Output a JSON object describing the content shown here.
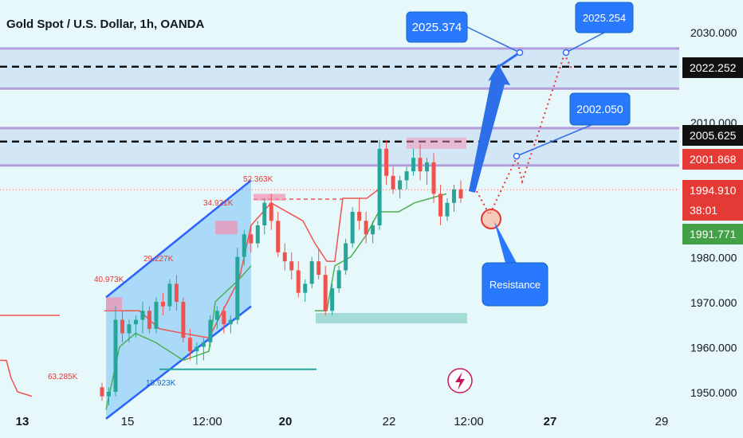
{
  "header": {
    "title": "Gold Spot / U.S. Dollar, 1h, OANDA"
  },
  "colors": {
    "background": "#e6f8fa",
    "up_candle": "#26a69a",
    "down_candle": "#ef5350",
    "zone_fill": "#cfe3f5",
    "zone_border": "#b39ddb",
    "channel": "#2962ff",
    "callout": "#2979ff",
    "price_line": "#ef5350",
    "green_tag": "#43a047"
  },
  "chart_data": {
    "type": "candlestick",
    "symbol": "Gold Spot / U.S. Dollar",
    "timeframe": "1h",
    "source": "OANDA",
    "ylim": [
      1946,
      2035
    ],
    "x_ticks": [
      "13",
      "15",
      "12:00",
      "20",
      "22",
      "12:00",
      "27",
      "29"
    ],
    "y_ticks": [
      "1950.000",
      "1960.000",
      "1970.000",
      "1980.000",
      "2010.000",
      "2030.000"
    ],
    "price_tags": [
      {
        "label": "2022.252",
        "value": 2022.252,
        "style": "dark"
      },
      {
        "label": "2005.625",
        "value": 2005.625,
        "style": "dark"
      },
      {
        "label": "2001.868",
        "value": 2001.868,
        "style": "red"
      },
      {
        "label": "1994.910",
        "value": 1994.91,
        "style": "red"
      },
      {
        "label": "38:01",
        "value": 1990.4,
        "style": "red"
      },
      {
        "label": "1991.771",
        "value": 1984.3,
        "style": "green"
      }
    ],
    "zones": [
      {
        "top": 2026.3,
        "bottom": 2017.4,
        "dashed_level": 2022.252
      },
      {
        "top": 2008.6,
        "bottom": 2000.3,
        "dashed_level": 2005.625
      }
    ],
    "volume_labels": [
      "52.363K",
      "34.921K",
      "29.227K",
      "40.973K",
      "63.285K",
      "18.923K"
    ],
    "annotations": {
      "callout_1": "2025.374",
      "callout_2": "2025.254",
      "callout_3": "2002.050",
      "resistance": "Resistance"
    },
    "candles": [
      [
        1951,
        1952,
        1948,
        1949
      ],
      [
        1949,
        1951,
        1947,
        1950
      ],
      [
        1950,
        1969,
        1949,
        1966
      ],
      [
        1966,
        1968,
        1961,
        1963
      ],
      [
        1963,
        1966,
        1961,
        1965
      ],
      [
        1965,
        1967,
        1962,
        1966
      ],
      [
        1966,
        1970,
        1963,
        1968
      ],
      [
        1968,
        1969,
        1963,
        1964
      ],
      [
        1964,
        1971,
        1963,
        1970
      ],
      [
        1970,
        1972,
        1967,
        1969
      ],
      [
        1969,
        1975,
        1968,
        1974
      ],
      [
        1974,
        1976,
        1968,
        1970
      ],
      [
        1970,
        1971,
        1961,
        1962
      ],
      [
        1962,
        1964,
        1957,
        1959
      ],
      [
        1959,
        1961,
        1956,
        1960
      ],
      [
        1960,
        1962,
        1957,
        1961
      ],
      [
        1961,
        1967,
        1960,
        1966
      ],
      [
        1966,
        1969,
        1964,
        1968
      ],
      [
        1968,
        1969,
        1963,
        1965
      ],
      [
        1965,
        1967,
        1963,
        1966
      ],
      [
        1966,
        1982,
        1965,
        1980
      ],
      [
        1980,
        1986,
        1978,
        1985
      ],
      [
        1985,
        1987,
        1981,
        1983
      ],
      [
        1983,
        1988,
        1982,
        1987
      ],
      [
        1987,
        1993,
        1985,
        1992
      ],
      [
        1992,
        1994,
        1986,
        1988
      ],
      [
        1988,
        1990,
        1980,
        1981
      ],
      [
        1981,
        1983,
        1977,
        1979
      ],
      [
        1979,
        1981,
        1975,
        1977
      ],
      [
        1977,
        1979,
        1971,
        1972
      ],
      [
        1972,
        1975,
        1970,
        1974
      ],
      [
        1974,
        1980,
        1973,
        1979
      ],
      [
        1979,
        1982,
        1975,
        1976
      ],
      [
        1976,
        1978,
        1967,
        1968
      ],
      [
        1968,
        1974,
        1967,
        1973
      ],
      [
        1973,
        1978,
        1972,
        1977
      ],
      [
        1977,
        1984,
        1976,
        1983
      ],
      [
        1983,
        1991,
        1982,
        1990
      ],
      [
        1990,
        1993,
        1986,
        1988
      ],
      [
        1988,
        1990,
        1983,
        1985
      ],
      [
        1985,
        1988,
        1983,
        1987
      ],
      [
        1987,
        2006,
        1986,
        2004
      ],
      [
        2004,
        2006,
        1996,
        1998
      ],
      [
        1998,
        2000,
        1994,
        1995
      ],
      [
        1995,
        1998,
        1993,
        1997
      ],
      [
        1997,
        2000,
        1995,
        1999
      ],
      [
        1999,
        2004,
        1998,
        2002
      ],
      [
        2002,
        2005,
        1997,
        1999
      ],
      [
        1999,
        2002,
        1996,
        2001
      ],
      [
        2001,
        2003,
        1992,
        1994
      ],
      [
        1994,
        1996,
        1987,
        1989
      ],
      [
        1989,
        1993,
        1988,
        1992
      ],
      [
        1992,
        1996,
        1990,
        1995
      ],
      [
        1995,
        1997,
        1992,
        1993
      ]
    ]
  }
}
